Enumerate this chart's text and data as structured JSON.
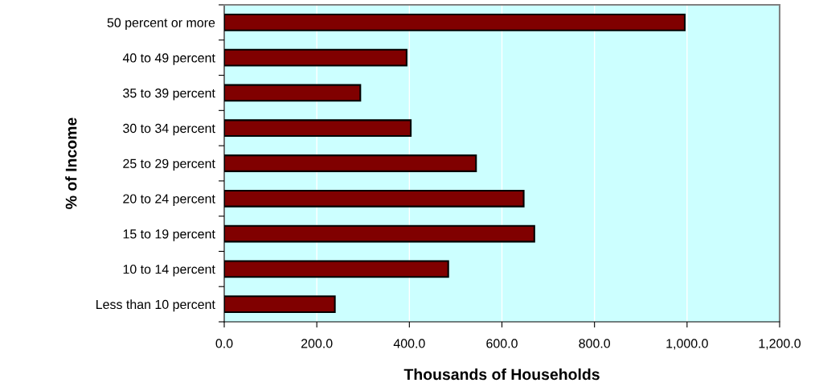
{
  "chart_data": {
    "type": "bar",
    "orientation": "horizontal",
    "xlabel": "Thousands of Households",
    "ylabel": "% of Income",
    "categories": [
      "50 percent or more",
      "40 to 49 percent",
      "35 to 39 percent",
      "30 to 34 percent",
      "25 to 29 percent",
      "20 to 24 percent",
      "15 to 19 percent",
      "10 to 14 percent",
      "Less than 10 percent"
    ],
    "values": [
      995,
      394,
      294,
      403,
      544,
      647,
      670,
      484,
      239
    ],
    "color": "#800000",
    "grid": "x",
    "legend": false,
    "xlim": [
      0,
      1200
    ],
    "xticks": [
      {
        "value": 0,
        "label": "0.0"
      },
      {
        "value": 200,
        "label": "200.0"
      },
      {
        "value": 400,
        "label": "400.0"
      },
      {
        "value": 600,
        "label": "600.0"
      },
      {
        "value": 800,
        "label": "800.0"
      },
      {
        "value": 1000,
        "label": "1,000.0"
      },
      {
        "value": 1200,
        "label": "1,200.0"
      }
    ]
  }
}
